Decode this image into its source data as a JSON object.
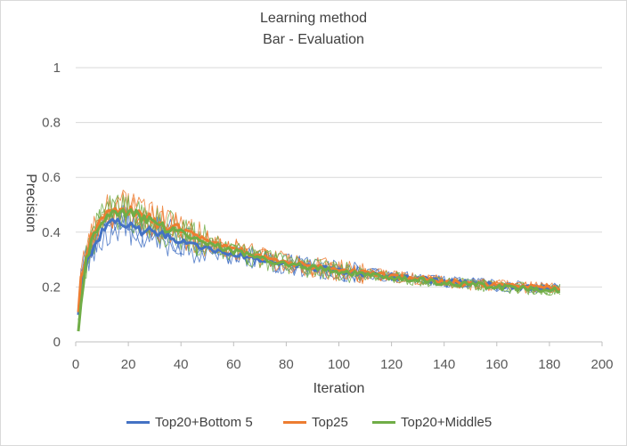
{
  "chart_data": {
    "type": "line",
    "title": "Learning method",
    "subtitle": "Bar - Evaluation",
    "xlabel": "Iteration",
    "ylabel": "Precision",
    "xlim": [
      0,
      200
    ],
    "ylim": [
      0,
      1
    ],
    "xticks": [
      "0",
      "20",
      "40",
      "60",
      "80",
      "100",
      "120",
      "140",
      "160",
      "180",
      "200"
    ],
    "yticks": [
      "0",
      "0.2",
      "0.4",
      "0.6",
      "0.8",
      "1"
    ],
    "grid": "horizontal",
    "legend_position": "bottom",
    "x": [
      1,
      2,
      4,
      6,
      8,
      10,
      12,
      14,
      16,
      18,
      20,
      24,
      28,
      32,
      36,
      40,
      45,
      50,
      55,
      60,
      70,
      80,
      90,
      100,
      110,
      120,
      130,
      140,
      150,
      160,
      170,
      180,
      184
    ],
    "series": [
      {
        "name": "Top20+Bottom 5",
        "color": "#4472c4",
        "values": [
          0.11,
          0.2,
          0.28,
          0.33,
          0.37,
          0.4,
          0.42,
          0.43,
          0.43,
          0.43,
          0.42,
          0.41,
          0.4,
          0.39,
          0.38,
          0.37,
          0.355,
          0.34,
          0.33,
          0.32,
          0.3,
          0.285,
          0.27,
          0.26,
          0.25,
          0.24,
          0.23,
          0.22,
          0.215,
          0.205,
          0.2,
          0.195,
          0.19
        ]
      },
      {
        "name": "Top25",
        "color": "#ed7d31",
        "values": [
          0.12,
          0.22,
          0.32,
          0.38,
          0.42,
          0.45,
          0.47,
          0.48,
          0.485,
          0.485,
          0.48,
          0.47,
          0.45,
          0.43,
          0.42,
          0.41,
          0.39,
          0.37,
          0.35,
          0.34,
          0.31,
          0.29,
          0.275,
          0.26,
          0.25,
          0.24,
          0.23,
          0.22,
          0.21,
          0.205,
          0.2,
          0.195,
          0.195
        ]
      },
      {
        "name": "Top20+Middle5",
        "color": "#70ad47",
        "values": [
          0.05,
          0.15,
          0.3,
          0.37,
          0.41,
          0.44,
          0.46,
          0.47,
          0.475,
          0.475,
          0.47,
          0.46,
          0.44,
          0.42,
          0.41,
          0.4,
          0.38,
          0.36,
          0.345,
          0.33,
          0.305,
          0.285,
          0.27,
          0.255,
          0.245,
          0.235,
          0.225,
          0.215,
          0.21,
          0.2,
          0.195,
          0.19,
          0.19
        ]
      }
    ]
  }
}
